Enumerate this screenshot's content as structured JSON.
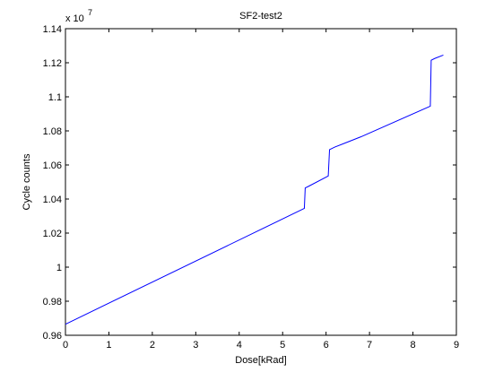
{
  "chart_data": {
    "type": "line",
    "title": "SF2-test2",
    "xlabel": "Dose[kRad]",
    "ylabel": "Cycle counts",
    "exponent_label": {
      "base": "x 10",
      "power": "7"
    },
    "xlim": [
      0,
      9
    ],
    "ylim": [
      0.96,
      1.14
    ],
    "x_ticks": [
      0,
      1,
      2,
      3,
      4,
      5,
      6,
      7,
      8,
      9
    ],
    "x_tick_labels": [
      "0",
      "1",
      "2",
      "3",
      "4",
      "5",
      "6",
      "7",
      "8",
      "9"
    ],
    "y_ticks": [
      0.96,
      0.98,
      1.0,
      1.02,
      1.04,
      1.06,
      1.08,
      1.1,
      1.12,
      1.14
    ],
    "y_tick_labels": [
      "0.96",
      "0.98",
      "1",
      "1.02",
      "1.04",
      "1.06",
      "1.08",
      "1.1",
      "1.12",
      "1.14"
    ],
    "grid": false,
    "line_color": "#0000ff",
    "series": [
      {
        "x": [
          0.0,
          5.5,
          5.52,
          5.6,
          6.05,
          6.08,
          6.2,
          6.5,
          6.8,
          8.4,
          8.42,
          8.5,
          8.7
        ],
        "y": [
          0.9665,
          1.0345,
          1.0465,
          1.0475,
          1.0535,
          1.069,
          1.0705,
          1.0735,
          1.0765,
          1.0945,
          1.1215,
          1.1225,
          1.1245
        ]
      }
    ]
  }
}
